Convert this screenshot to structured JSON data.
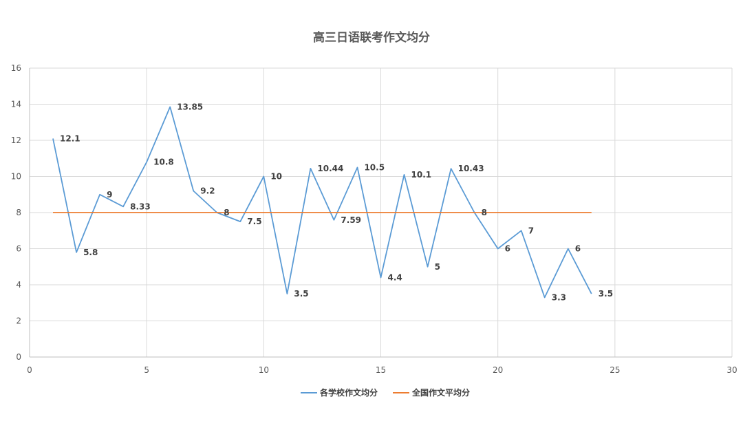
{
  "chart_data": {
    "type": "line",
    "title": "高三日语联考作文均分",
    "xlabel": "",
    "ylabel": "",
    "xlim": [
      0,
      30
    ],
    "ylim": [
      0,
      16
    ],
    "xticks": [
      0,
      5,
      10,
      15,
      20,
      25,
      30
    ],
    "yticks": [
      0,
      2,
      4,
      6,
      8,
      10,
      12,
      14,
      16
    ],
    "grid": true,
    "legend_position": "bottom",
    "series": [
      {
        "name": "各学校作文均分",
        "color": "#5b9bd5",
        "x": [
          1,
          2,
          3,
          4,
          5,
          6,
          7,
          8,
          9,
          10,
          11,
          12,
          13,
          14,
          15,
          16,
          17,
          18,
          19,
          20,
          21,
          22,
          23,
          24
        ],
        "y": [
          12.1,
          5.8,
          9,
          8.33,
          10.8,
          13.85,
          9.2,
          8,
          7.5,
          10,
          3.5,
          10.44,
          7.59,
          10.5,
          4.4,
          10.1,
          5,
          10.43,
          8,
          6,
          7,
          3.3,
          6,
          3.5
        ],
        "labels": [
          "12.1",
          "5.8",
          "9",
          "8.33",
          "10.8",
          "13.85",
          "9.2",
          "8",
          "7.5",
          "10",
          "3.5",
          "10.44",
          "7.59",
          "10.5",
          "4.4",
          "10.1",
          "5",
          "10.43",
          "8",
          "6",
          "7",
          "3.3",
          "6",
          "3.5"
        ]
      },
      {
        "name": "全国作文平均分",
        "color": "#ed7d31",
        "x": [
          1,
          24
        ],
        "y": [
          8,
          8
        ]
      }
    ]
  }
}
